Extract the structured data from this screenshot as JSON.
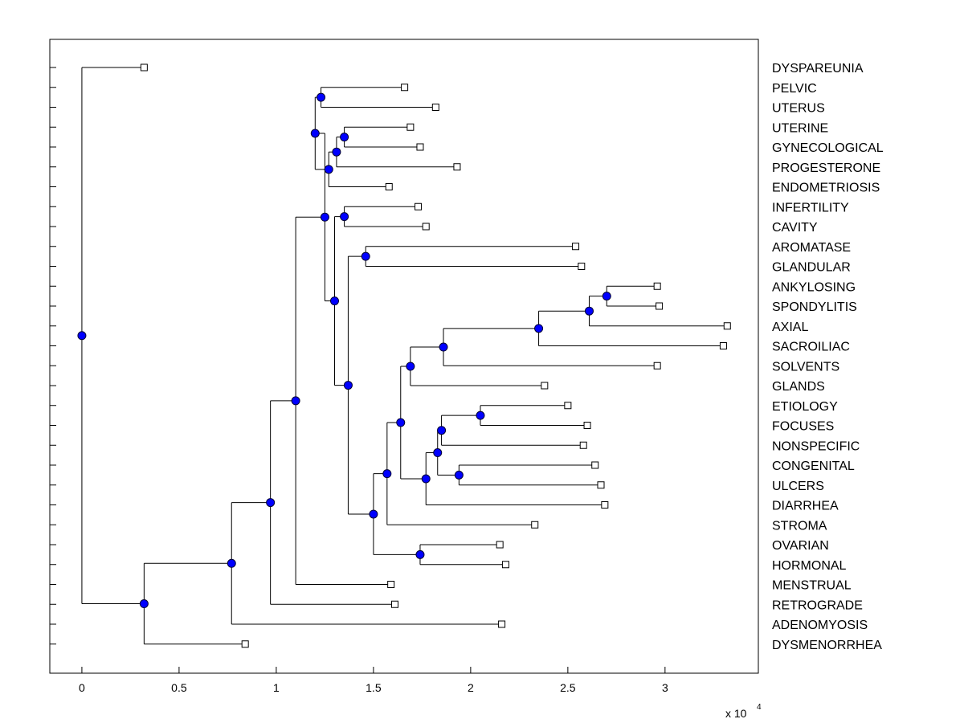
{
  "chart_data": {
    "type": "dendrogram",
    "title": "",
    "xlabel": "",
    "ylabel": "",
    "x_scale_label": "x 10",
    "x_scale_exponent": "4",
    "xlim": [
      -0.165,
      3.48
    ],
    "x_ticks": [
      0,
      0.5,
      1,
      1.5,
      2,
      2.5,
      3
    ],
    "x_tick_labels": [
      "0",
      "0.5",
      "1",
      "1.5",
      "2",
      "2.5",
      "3"
    ],
    "grid": false,
    "leaves": [
      {
        "label": "DYSPAREUNIA",
        "x": 0.32
      },
      {
        "label": "PELVIC",
        "x": 1.66
      },
      {
        "label": "UTERUS",
        "x": 1.82
      },
      {
        "label": "UTERINE",
        "x": 1.69
      },
      {
        "label": "GYNECOLOGICAL",
        "x": 1.74
      },
      {
        "label": "PROGESTERONE",
        "x": 1.93
      },
      {
        "label": "ENDOMETRIOSIS",
        "x": 1.58
      },
      {
        "label": "INFERTILITY",
        "x": 1.73
      },
      {
        "label": "CAVITY",
        "x": 1.77
      },
      {
        "label": "AROMATASE",
        "x": 2.54
      },
      {
        "label": "GLANDULAR",
        "x": 2.57
      },
      {
        "label": "ANKYLOSING",
        "x": 2.96
      },
      {
        "label": "SPONDYLITIS",
        "x": 2.97
      },
      {
        "label": "AXIAL",
        "x": 3.32
      },
      {
        "label": "SACROILIAC",
        "x": 3.3
      },
      {
        "label": "SOLVENTS",
        "x": 2.96
      },
      {
        "label": "GLANDS",
        "x": 2.38
      },
      {
        "label": "ETIOLOGY",
        "x": 2.5
      },
      {
        "label": "FOCUSES",
        "x": 2.6
      },
      {
        "label": "NONSPECIFIC",
        "x": 2.58
      },
      {
        "label": "CONGENITAL",
        "x": 2.64
      },
      {
        "label": "ULCERS",
        "x": 2.67
      },
      {
        "label": "DIARRHEA",
        "x": 2.69
      },
      {
        "label": "STROMA",
        "x": 2.33
      },
      {
        "label": "OVARIAN",
        "x": 2.15
      },
      {
        "label": "HORMONAL",
        "x": 2.18
      },
      {
        "label": "MENSTRUAL",
        "x": 1.59
      },
      {
        "label": "RETROGRADE",
        "x": 1.61
      },
      {
        "label": "ADENOMYOSIS",
        "x": 2.16
      },
      {
        "label": "DYSMENORRHEA",
        "x": 0.84
      }
    ],
    "internal_nodes": [
      {
        "id": "n_pelvic_uterus",
        "x": 1.23,
        "children": [
          "L1",
          "L2"
        ]
      },
      {
        "id": "n_uterine_gyn",
        "x": 1.35,
        "children": [
          "L3",
          "L4"
        ]
      },
      {
        "id": "n_a",
        "x": 1.31,
        "children": [
          "n_uterine_gyn",
          "L5"
        ]
      },
      {
        "id": "n_b",
        "x": 1.27,
        "children": [
          "n_a",
          "L6"
        ]
      },
      {
        "id": "n_c",
        "x": 1.2,
        "children": [
          "n_pelvic_uterus",
          "n_b"
        ]
      },
      {
        "id": "n_inf_cav",
        "x": 1.35,
        "children": [
          "L7",
          "L8"
        ]
      },
      {
        "id": "n_arom_gland",
        "x": 1.46,
        "children": [
          "L9",
          "L10"
        ]
      },
      {
        "id": "n_ank_spon",
        "x": 2.7,
        "children": [
          "L11",
          "L12"
        ]
      },
      {
        "id": "n_d",
        "x": 2.61,
        "children": [
          "n_ank_spon",
          "L13"
        ]
      },
      {
        "id": "n_e",
        "x": 2.35,
        "children": [
          "n_d",
          "L14"
        ]
      },
      {
        "id": "n_f",
        "x": 1.86,
        "children": [
          "n_e",
          "L15"
        ]
      },
      {
        "id": "n_g",
        "x": 1.69,
        "children": [
          "n_f",
          "L16"
        ]
      },
      {
        "id": "n_etio_focus",
        "x": 2.05,
        "children": [
          "L17",
          "L18"
        ]
      },
      {
        "id": "n_h",
        "x": 1.85,
        "children": [
          "n_etio_focus",
          "L19"
        ]
      },
      {
        "id": "n_cong_ulc",
        "x": 1.94,
        "children": [
          "L20",
          "L21"
        ]
      },
      {
        "id": "n_i",
        "x": 1.83,
        "children": [
          "n_h",
          "n_cong_ulc"
        ]
      },
      {
        "id": "n_j",
        "x": 1.77,
        "children": [
          "n_i",
          "L22"
        ]
      },
      {
        "id": "n_k",
        "x": 1.64,
        "children": [
          "n_g",
          "n_j"
        ]
      },
      {
        "id": "n_l",
        "x": 1.57,
        "children": [
          "n_k",
          "L23"
        ]
      },
      {
        "id": "n_ovar_horm",
        "x": 1.74,
        "children": [
          "L24",
          "L25"
        ]
      },
      {
        "id": "n_m",
        "x": 1.5,
        "children": [
          "n_l",
          "n_ovar_horm"
        ]
      },
      {
        "id": "n_n",
        "x": 1.37,
        "children": [
          "n_arom_gland",
          "n_m"
        ]
      },
      {
        "id": "n_o",
        "x": 1.3,
        "children": [
          "n_inf_cav",
          "n_n"
        ]
      },
      {
        "id": "n_p",
        "x": 1.25,
        "children": [
          "n_c",
          "n_o"
        ]
      },
      {
        "id": "n_q",
        "x": 1.1,
        "children": [
          "n_p",
          "L26"
        ]
      },
      {
        "id": "n_r",
        "x": 0.97,
        "children": [
          "n_q",
          "L27"
        ]
      },
      {
        "id": "n_s",
        "x": 0.77,
        "children": [
          "n_r",
          "L28"
        ]
      },
      {
        "id": "n_t",
        "x": 0.32,
        "children": [
          "n_s",
          "L29"
        ]
      },
      {
        "id": "n_root",
        "x": 0.0,
        "children": [
          "L0",
          "n_t"
        ]
      }
    ]
  }
}
